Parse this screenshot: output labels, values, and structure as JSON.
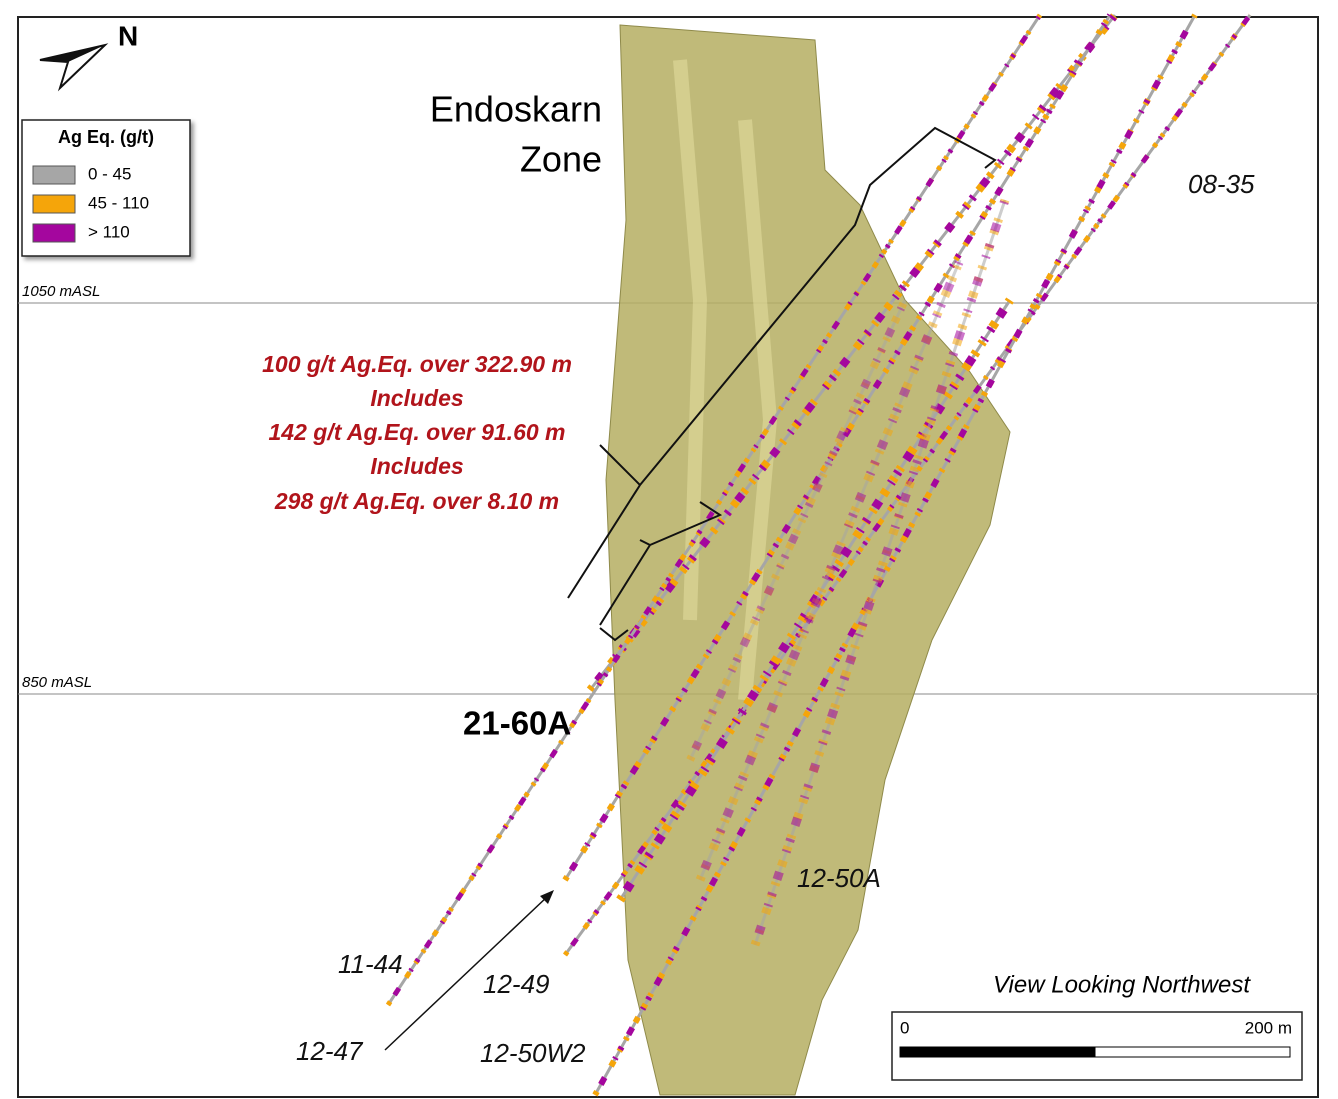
{
  "north_arrow": {
    "label": "N"
  },
  "legend": {
    "title": "Ag Eq. (g/t)",
    "items": [
      {
        "label": "0 - 45",
        "color": "#a6a6a6"
      },
      {
        "label": "45 - 110",
        "color": "#f5a50a"
      },
      {
        "label": "> 110",
        "color": "#a4069e"
      }
    ]
  },
  "elevations": [
    {
      "label": "1050 mASL"
    },
    {
      "label": "850 mASL"
    }
  ],
  "zone_label": [
    "Endoskarn",
    "Zone"
  ],
  "intercepts": [
    "100 g/t Ag.Eq. over 322.90 m",
    "Includes",
    "142 g/t Ag.Eq. over 91.60 m",
    "Includes",
    "298 g/t Ag.Eq. over 8.10 m"
  ],
  "drill_holes": [
    {
      "label": "08-35"
    },
    {
      "label": "21-60A"
    },
    {
      "label": "12-50A"
    },
    {
      "label": "11-44"
    },
    {
      "label": "12-49"
    },
    {
      "label": "12-47"
    },
    {
      "label": "12-50W2"
    }
  ],
  "view_label": "View Looking Northwest",
  "scale_bar": {
    "start": "0",
    "end": "200 m"
  }
}
